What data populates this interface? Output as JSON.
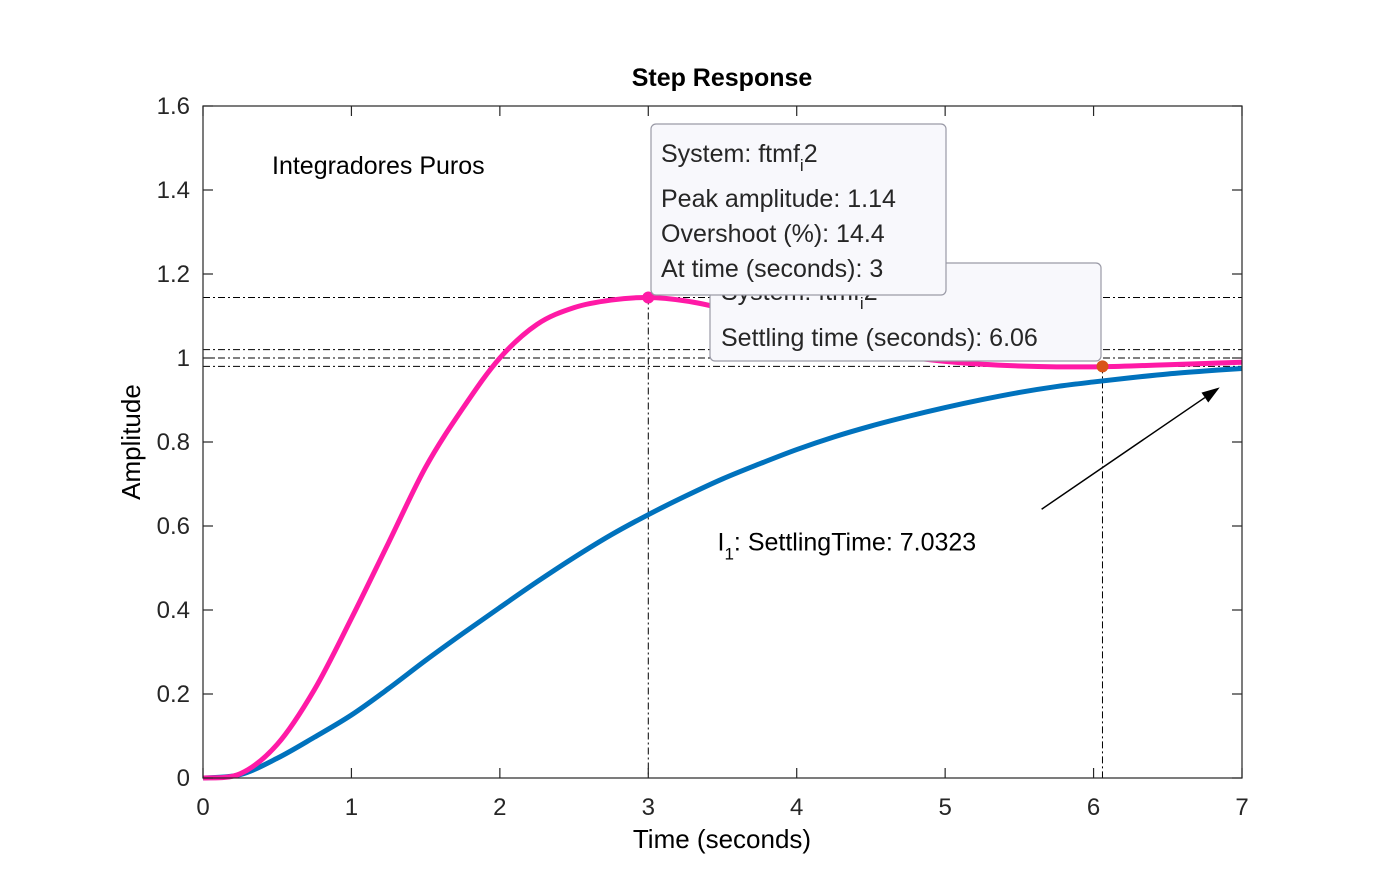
{
  "chart_data": {
    "type": "line",
    "title": "Step Response",
    "xlabel": "Time (seconds)",
    "ylabel": "Amplitude",
    "xlim": [
      0,
      7
    ],
    "ylim": [
      0,
      1.6
    ],
    "x_ticks": [
      "0",
      "1",
      "2",
      "3",
      "4",
      "5",
      "6",
      "7"
    ],
    "y_ticks": [
      "0",
      "0.2",
      "0.4",
      "0.6",
      "0.8",
      "1",
      "1.2",
      "1.4",
      "1.6"
    ],
    "grid": false,
    "series": [
      {
        "color": "#0072BD",
        "x": [
          0,
          0.25,
          0.5,
          0.75,
          1,
          1.25,
          1.5,
          1.75,
          2,
          2.25,
          2.5,
          2.75,
          3,
          3.25,
          3.5,
          3.75,
          4,
          4.25,
          4.5,
          4.75,
          5,
          5.25,
          5.5,
          5.75,
          6,
          6.25,
          6.5,
          6.75,
          7
        ],
        "y": [
          0,
          0.008,
          0.047,
          0.097,
          0.15,
          0.213,
          0.28,
          0.344,
          0.406,
          0.467,
          0.525,
          0.579,
          0.627,
          0.671,
          0.712,
          0.748,
          0.782,
          0.812,
          0.838,
          0.861,
          0.882,
          0.901,
          0.918,
          0.932,
          0.943,
          0.953,
          0.962,
          0.969,
          0.975
        ]
      },
      {
        "color": "#FF1AA6",
        "x": [
          0,
          0.25,
          0.5,
          0.75,
          1,
          1.25,
          1.5,
          1.75,
          2,
          2.25,
          2.5,
          2.75,
          3,
          3.25,
          3.5,
          3.75,
          4,
          4.25,
          4.5,
          4.75,
          5,
          5.25,
          5.5,
          5.75,
          6,
          6.25,
          6.5,
          6.75,
          7
        ],
        "y": [
          0,
          0.01,
          0.08,
          0.21,
          0.38,
          0.56,
          0.74,
          0.88,
          1.0,
          1.08,
          1.12,
          1.138,
          1.144,
          1.136,
          1.118,
          1.094,
          1.067,
          1.042,
          1.02,
          1.003,
          0.992,
          0.985,
          0.981,
          0.979,
          0.979,
          0.981,
          0.984,
          0.987,
          0.99
        ]
      }
    ],
    "reference_lines": {
      "horizontal": [
        1.144,
        1.02,
        1.0,
        0.98
      ],
      "vertical": [
        3,
        6.06
      ]
    },
    "markers": [
      {
        "x": 3,
        "y": 1.144,
        "color": "#FF1AA6"
      },
      {
        "x": 6.06,
        "y": 0.98,
        "color": "#D95319"
      }
    ],
    "text_annotation": {
      "text": "Integradores Puros",
      "x": 0.47,
      "y": 1.45
    },
    "arrow_annotation": {
      "label_main": "I",
      "label_sub": "1",
      "label_rest": ": SettlingTime: 7.0323",
      "label_x": 3.5,
      "label_y": 0.57,
      "from_x": 5.65,
      "from_y": 0.64,
      "to_x": 6.85,
      "to_y": 0.93
    },
    "datatips": [
      {
        "anchor_x": 6.06,
        "anchor_y": 0.98,
        "line1_main": "System: ftmf",
        "line1_sub": "i",
        "line1_rest": "2",
        "line2": "Settling time (seconds): 6.06"
      },
      {
        "anchor_x": 3,
        "anchor_y": 1.144,
        "line1_main": "System: ftmf",
        "line1_sub": "i",
        "line1_rest": "2",
        "line2": "Peak amplitude: 1.14",
        "line3": "Overshoot (%): 14.4",
        "line4": "At time (seconds): 3"
      }
    ]
  }
}
